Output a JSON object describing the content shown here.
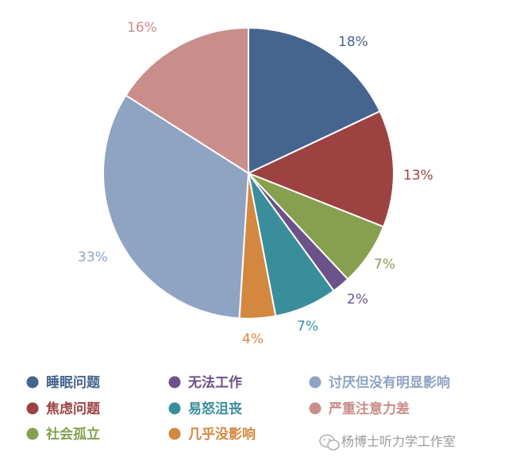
{
  "chart_data": {
    "type": "pie",
    "slices": [
      {
        "label": "睡眠问题",
        "value": 18,
        "display": "18%",
        "color": "#45648e"
      },
      {
        "label": "焦虑问题",
        "value": 13,
        "display": "13%",
        "color": "#9c4241"
      },
      {
        "label": "社会孤立",
        "value": 7,
        "display": "7%",
        "color": "#86a04f"
      },
      {
        "label": "无法工作",
        "value": 2,
        "display": "2%",
        "color": "#6b5288"
      },
      {
        "label": "易怒沮丧",
        "value": 7,
        "display": "7%",
        "color": "#3a8e9c"
      },
      {
        "label": "几乎没影响",
        "value": 4,
        "display": "4%",
        "color": "#d4873e"
      },
      {
        "label": "讨厌但没有明显影响",
        "value": 33,
        "display": "33%",
        "color": "#8fa3c3"
      },
      {
        "label": "严重注意力差",
        "value": 16,
        "display": "16%",
        "color": "#c98e8a"
      }
    ],
    "legend": {
      "placement": "bottom",
      "columns": [
        [
          "睡眠问题",
          "焦虑问题",
          "社会孤立"
        ],
        [
          "无法工作",
          "易怒沮丧",
          "几乎没影响"
        ],
        [
          "讨厌但没有明显影响",
          "严重注意力差"
        ]
      ]
    }
  },
  "watermark": {
    "text": "杨博士听力学工作室",
    "icon": "wechat-icon"
  }
}
